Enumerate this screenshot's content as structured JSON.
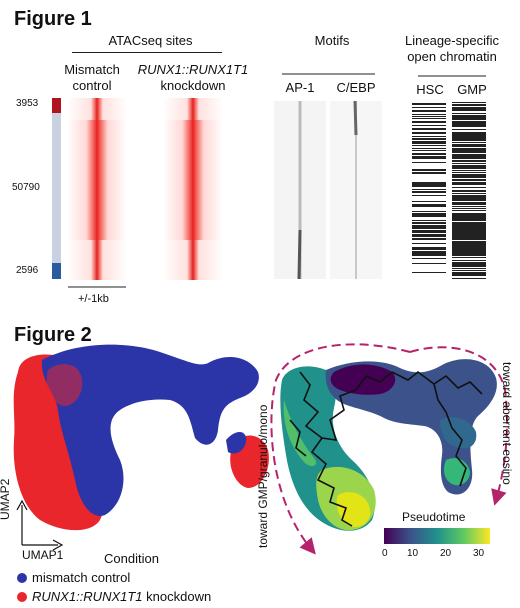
{
  "figure1": {
    "title": "Figure 1",
    "atac": {
      "header": "ATACseq sites",
      "col1": "Mismatch\ncontrol",
      "col2_line1": "RUNX1::RUNX1T1",
      "col2_line2": "knockdown",
      "row_counts": [
        "3953",
        "50790",
        "2596"
      ],
      "scale": "+/-1kb",
      "heat_color": "#e8201e",
      "bar_top_color": "#b0141c",
      "bar_mid_color": "#c9d1e0",
      "bar_bot_color": "#2a5aa0"
    },
    "motifs": {
      "header": "Motifs",
      "col1": "AP-1",
      "col2": "C/EBP"
    },
    "lineage": {
      "header_line1": "Lineage-specific",
      "header_line2": "open chromatin",
      "col1": "HSC",
      "col2": "GMP"
    }
  },
  "figure2": {
    "title": "Figure 2",
    "axis_y": "UMAP2",
    "axis_x": "UMAP1",
    "condition_label": "Condition",
    "legend": [
      {
        "label": "mismatch control",
        "color": "#2b35a8",
        "italic_part": ""
      },
      {
        "label": " knockdown",
        "color": "#e8262b",
        "italic_part": "RUNX1::RUNX1T1"
      }
    ],
    "pseudotime": {
      "title": "Pseudotime",
      "ticks": [
        "0",
        "10",
        "20",
        "30"
      ],
      "annot_left": "toward GMP/granulo/mono",
      "annot_right": "toward aberrant eosino",
      "arrow_color": "#b5246a"
    }
  }
}
